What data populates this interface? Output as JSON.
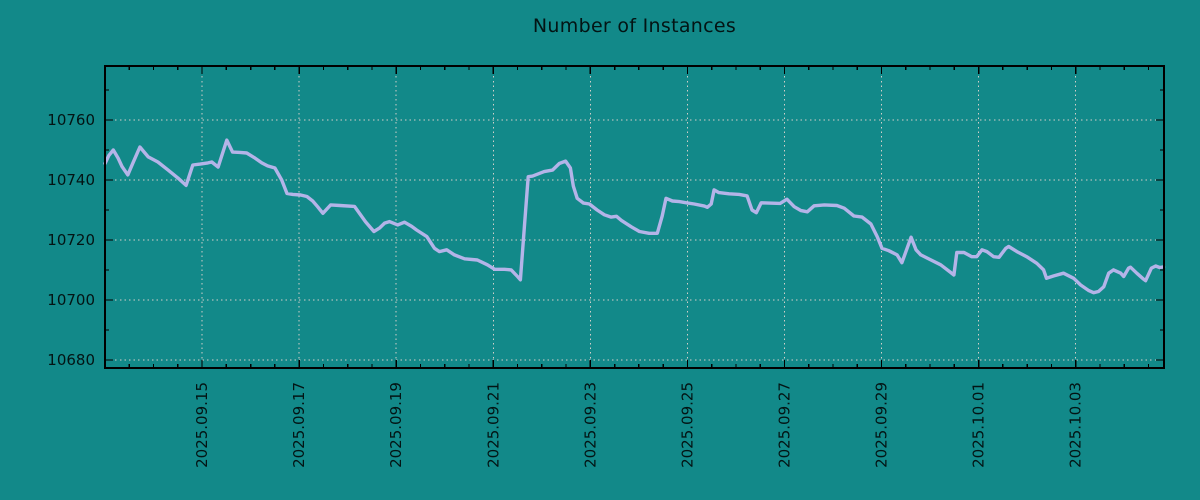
{
  "page": {
    "background_color": "#128989"
  },
  "chart_data": {
    "type": "line",
    "title": "Number of Instances",
    "legend": {
      "show": false
    },
    "grid": {
      "show": true,
      "style": "dotted"
    },
    "colors": {
      "background": "#128989",
      "line": "#b4b4e8",
      "grid": "#d2cfc9",
      "axis": "#000000",
      "text": "#031414"
    },
    "x_axis": {
      "origin_date": "2025.09.13",
      "range_days": [
        0,
        21.82
      ],
      "tick_positions_days": [
        2,
        4,
        6,
        8,
        10,
        12,
        14,
        16,
        18,
        20
      ],
      "tick_labels": [
        "2025.09.15",
        "2025.09.17",
        "2025.09.19",
        "2025.09.21",
        "2025.09.23",
        "2025.09.25",
        "2025.09.27",
        "2025.09.29",
        "2025.10.01",
        "2025.10.03"
      ],
      "minor_tick_step_days": 0.5
    },
    "y_axis": {
      "range": [
        10677.3,
        10778.0
      ],
      "tick_values": [
        10680,
        10700,
        10720,
        10740,
        10760
      ],
      "tick_labels": [
        "10680",
        "10700",
        "10720",
        "10740",
        "10760"
      ],
      "minor_tick_step": 10
    },
    "points_format": "[days_since_2025.09.13, value]",
    "series": [
      {
        "name": "instances",
        "points": [
          [
            0.0,
            10745.5
          ],
          [
            0.08,
            10748.2
          ],
          [
            0.17,
            10750.0
          ],
          [
            0.27,
            10747.3
          ],
          [
            0.35,
            10744.5
          ],
          [
            0.47,
            10741.7
          ],
          [
            0.58,
            10745.8
          ],
          [
            0.72,
            10751.0
          ],
          [
            0.89,
            10747.7
          ],
          [
            1.09,
            10746.0
          ],
          [
            1.3,
            10743.3
          ],
          [
            1.5,
            10740.7
          ],
          [
            1.67,
            10738.2
          ],
          [
            1.81,
            10745.0
          ],
          [
            1.96,
            10745.3
          ],
          [
            2.12,
            10745.7
          ],
          [
            2.2,
            10746.0
          ],
          [
            2.33,
            10744.3
          ],
          [
            2.51,
            10753.3
          ],
          [
            2.63,
            10749.3
          ],
          [
            2.78,
            10749.2
          ],
          [
            2.92,
            10749.0
          ],
          [
            3.09,
            10747.3
          ],
          [
            3.23,
            10745.7
          ],
          [
            3.35,
            10744.7
          ],
          [
            3.5,
            10744.0
          ],
          [
            3.64,
            10740.0
          ],
          [
            3.75,
            10735.5
          ],
          [
            3.87,
            10735.2
          ],
          [
            4.03,
            10735.0
          ],
          [
            4.16,
            10734.5
          ],
          [
            4.28,
            10733.0
          ],
          [
            4.38,
            10731.1
          ],
          [
            4.49,
            10728.9
          ],
          [
            4.65,
            10731.7
          ],
          [
            4.84,
            10731.5
          ],
          [
            5.14,
            10731.2
          ],
          [
            5.37,
            10726.0
          ],
          [
            5.54,
            10722.8
          ],
          [
            5.66,
            10724.0
          ],
          [
            5.76,
            10725.6
          ],
          [
            5.86,
            10726.1
          ],
          [
            6.03,
            10725.0
          ],
          [
            6.17,
            10725.9
          ],
          [
            6.32,
            10724.5
          ],
          [
            6.42,
            10723.3
          ],
          [
            6.63,
            10721.1
          ],
          [
            6.79,
            10717.2
          ],
          [
            6.89,
            10716.1
          ],
          [
            7.04,
            10716.7
          ],
          [
            7.2,
            10715.0
          ],
          [
            7.41,
            10713.7
          ],
          [
            7.67,
            10713.3
          ],
          [
            7.88,
            10711.7
          ],
          [
            8.03,
            10710.2
          ],
          [
            8.23,
            10710.2
          ],
          [
            8.37,
            10710.0
          ],
          [
            8.5,
            10707.8
          ],
          [
            8.56,
            10706.7
          ],
          [
            8.64,
            10724.0
          ],
          [
            8.72,
            10741.1
          ],
          [
            8.81,
            10741.3
          ],
          [
            9.05,
            10742.8
          ],
          [
            9.22,
            10743.3
          ],
          [
            9.36,
            10745.5
          ],
          [
            9.49,
            10746.3
          ],
          [
            9.59,
            10744.0
          ],
          [
            9.65,
            10738.0
          ],
          [
            9.73,
            10733.9
          ],
          [
            9.86,
            10732.3
          ],
          [
            9.98,
            10732.0
          ],
          [
            10.14,
            10730.0
          ],
          [
            10.29,
            10728.4
          ],
          [
            10.43,
            10727.6
          ],
          [
            10.54,
            10727.9
          ],
          [
            10.64,
            10726.5
          ],
          [
            10.84,
            10724.4
          ],
          [
            11.01,
            10722.8
          ],
          [
            11.21,
            10722.2
          ],
          [
            11.38,
            10722.2
          ],
          [
            11.48,
            10728.0
          ],
          [
            11.56,
            10733.9
          ],
          [
            11.69,
            10733.0
          ],
          [
            11.83,
            10732.8
          ],
          [
            11.98,
            10732.4
          ],
          [
            12.14,
            10732.0
          ],
          [
            12.35,
            10731.3
          ],
          [
            12.41,
            10730.9
          ],
          [
            12.49,
            10732.0
          ],
          [
            12.55,
            10736.7
          ],
          [
            12.65,
            10735.8
          ],
          [
            12.86,
            10735.4
          ],
          [
            13.07,
            10735.2
          ],
          [
            13.23,
            10734.7
          ],
          [
            13.33,
            10730.0
          ],
          [
            13.42,
            10729.1
          ],
          [
            13.52,
            10732.4
          ],
          [
            13.68,
            10732.3
          ],
          [
            13.91,
            10732.2
          ],
          [
            14.05,
            10733.6
          ],
          [
            14.2,
            10731.1
          ],
          [
            14.34,
            10729.8
          ],
          [
            14.47,
            10729.4
          ],
          [
            14.61,
            10731.4
          ],
          [
            14.82,
            10731.7
          ],
          [
            15.08,
            10731.5
          ],
          [
            15.23,
            10730.6
          ],
          [
            15.43,
            10728.0
          ],
          [
            15.6,
            10727.6
          ],
          [
            15.78,
            10725.3
          ],
          [
            15.91,
            10721.1
          ],
          [
            16.01,
            10717.2
          ],
          [
            16.15,
            10716.4
          ],
          [
            16.32,
            10715.0
          ],
          [
            16.42,
            10712.4
          ],
          [
            16.61,
            10720.9
          ],
          [
            16.71,
            10716.7
          ],
          [
            16.81,
            10715.0
          ],
          [
            17.02,
            10713.3
          ],
          [
            17.22,
            10711.7
          ],
          [
            17.43,
            10709.1
          ],
          [
            17.49,
            10708.3
          ],
          [
            17.55,
            10715.8
          ],
          [
            17.7,
            10715.8
          ],
          [
            17.86,
            10714.4
          ],
          [
            17.96,
            10714.4
          ],
          [
            18.07,
            10716.7
          ],
          [
            18.17,
            10716.1
          ],
          [
            18.31,
            10714.4
          ],
          [
            18.42,
            10714.2
          ],
          [
            18.56,
            10717.2
          ],
          [
            18.62,
            10717.8
          ],
          [
            18.79,
            10716.1
          ],
          [
            18.99,
            10714.4
          ],
          [
            19.2,
            10712.2
          ],
          [
            19.34,
            10710.0
          ],
          [
            19.4,
            10707.2
          ],
          [
            19.55,
            10708.0
          ],
          [
            19.75,
            10708.9
          ],
          [
            19.96,
            10707.2
          ],
          [
            20.1,
            10705.0
          ],
          [
            20.27,
            10703.1
          ],
          [
            20.37,
            10702.4
          ],
          [
            20.47,
            10702.8
          ],
          [
            20.58,
            10704.4
          ],
          [
            20.68,
            10708.9
          ],
          [
            20.78,
            10710.0
          ],
          [
            20.93,
            10708.9
          ],
          [
            20.99,
            10707.8
          ],
          [
            21.09,
            10710.6
          ],
          [
            21.13,
            10710.9
          ],
          [
            21.26,
            10708.9
          ],
          [
            21.4,
            10706.9
          ],
          [
            21.44,
            10706.4
          ],
          [
            21.56,
            10710.6
          ],
          [
            21.65,
            10711.3
          ],
          [
            21.73,
            10710.8
          ],
          [
            21.81,
            10711.0
          ]
        ]
      }
    ]
  }
}
